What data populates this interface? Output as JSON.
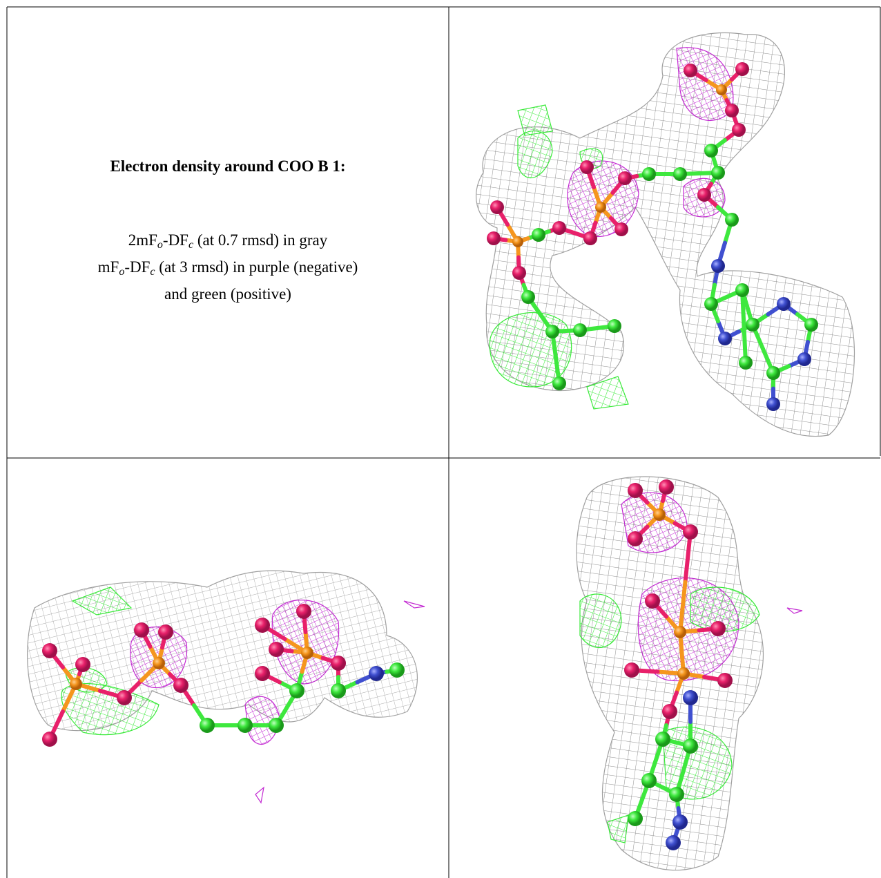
{
  "panel": {
    "title": "Electron density around COO B 1:",
    "legend": [
      [
        "2mF",
        "o",
        "-DF",
        "c",
        " (at 0.7 rmsd) in gray"
      ],
      [
        "mF",
        "o",
        "-DF",
        "c",
        " (at 3 rmsd) in purple (negative)"
      ],
      [
        "and green (positive)"
      ]
    ]
  }
}
